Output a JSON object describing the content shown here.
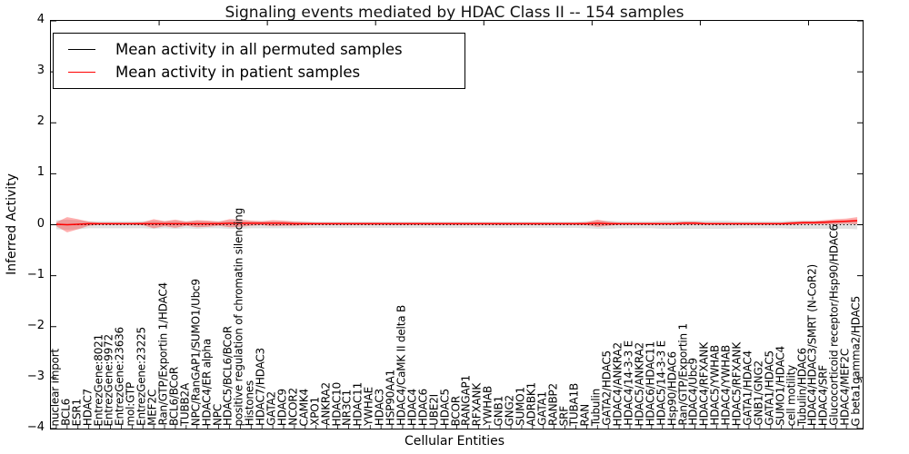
{
  "title": "Signaling events mediated by HDAC Class II -- 154 samples",
  "legend": {
    "items": [
      {
        "label": "Mean activity in all permuted samples",
        "color": "#000000"
      },
      {
        "label": "Mean activity in patient samples",
        "color": "#ff0000"
      }
    ]
  },
  "chart_data": {
    "type": "line",
    "title": "Signaling events mediated by HDAC Class II -- 154 samples",
    "xlabel": "Cellular Entities",
    "ylabel": "Inferred Activity",
    "ylim": [
      -4,
      4
    ],
    "yticks": [
      4,
      3,
      2,
      1,
      0,
      -1,
      -2,
      -3,
      -4
    ],
    "grid": false,
    "legend_position": "upper left",
    "categories": [
      "nuclear import",
      "BCL6",
      "ESR1",
      "HDAC7",
      "EntrezGene:8021",
      "EntrezGene:9972",
      "EntrezGene:23636",
      "mol:GTP",
      "EntrezGene:23225",
      "MEF2C",
      "Ran/GTP/Exportin 1/HDAC4",
      "BCL6/BCoR",
      "TUBB2A",
      "NPC/RanGAP1/SUMO1/Ubc9",
      "HDAC4/ER alpha",
      "NPC",
      "HDAC5/BCL6/BCoR",
      "positive regulation of chromatin silencing",
      "Histones",
      "HDAC7/HDAC3",
      "GATA2",
      "HDAC9",
      "NCOR2",
      "CAMK4",
      "XPO1",
      "ANKRA2",
      "HDAC10",
      "NR3C1",
      "HDAC11",
      "YWHAE",
      "HDAC3",
      "HSP90AA1",
      "HDAC4/CaMK II delta B",
      "HDAC4",
      "HDAC6",
      "UBE2I",
      "HDAC5",
      "BCOR",
      "RANGAP1",
      "RFXANK",
      "YWHAB",
      "GNB1",
      "GNG2",
      "SUMO1",
      "ADRBK1",
      "GATA1",
      "RANBP2",
      "SRF",
      "TUBA1B",
      "RAN",
      "Tubulin",
      "GATA2/HDAC5",
      "HDAC4/ANKRA2",
      "HDAC4/14-3-3 E",
      "HDAC5/ANKRA2",
      "HDAC6/HDAC11",
      "HDAC5/14-3-3 E",
      "Hsp90/HDAC6",
      "Ran/GTP/Exportin 1",
      "HDAC4/Ubc9",
      "HDAC4/RFXANK",
      "HDAC5/YWHAB",
      "HDAC4/YWHAB",
      "HDAC5/RFXANK",
      "GATA1/HDAC4",
      "GNB1/GNG2",
      "GATA1/HDAC5",
      "SUMO1/HDAC4",
      "cell motility",
      "Tubulin/HDAC6",
      "HDAC4/HDAC3/SMRT (N-CoR2)",
      "HDAC4/SRF",
      "Glucocorticoid receptor/Hsp90/HDAC6",
      "HDAC4/MEF2C",
      "G beta1gamma2/HDAC5"
    ],
    "series": [
      {
        "name": "Mean activity in all permuted samples",
        "color": "#000000",
        "line_style": "dotted",
        "band_color": "#aaaaaa",
        "band_opacity": 0.35,
        "values": [
          0,
          0,
          0,
          0,
          0,
          0,
          0,
          0,
          0,
          0,
          0,
          0,
          0,
          0,
          0,
          0,
          0,
          0,
          0,
          0,
          0,
          0,
          0,
          0,
          0,
          0,
          0,
          0,
          0,
          0,
          0,
          0,
          0,
          0,
          0,
          0,
          0,
          0,
          0,
          0,
          0,
          0,
          0,
          0,
          0,
          0,
          0,
          0,
          0,
          0,
          0,
          0,
          0,
          0,
          0,
          0,
          0,
          0,
          0,
          0,
          0,
          0,
          0,
          0,
          0,
          0,
          0,
          0,
          0,
          0,
          0,
          0,
          0,
          0,
          0
        ],
        "band_halfwidth": [
          0.09,
          0.1,
          0.09,
          0.07,
          0.07,
          0.07,
          0.07,
          0.07,
          0.07,
          0.08,
          0.07,
          0.08,
          0.07,
          0.08,
          0.07,
          0.07,
          0.08,
          0.08,
          0.07,
          0.07,
          0.07,
          0.07,
          0.07,
          0.07,
          0.06,
          0.06,
          0.06,
          0.06,
          0.06,
          0.06,
          0.06,
          0.06,
          0.06,
          0.06,
          0.06,
          0.06,
          0.06,
          0.06,
          0.06,
          0.06,
          0.06,
          0.06,
          0.06,
          0.06,
          0.06,
          0.06,
          0.06,
          0.06,
          0.06,
          0.07,
          0.08,
          0.08,
          0.07,
          0.07,
          0.07,
          0.07,
          0.08,
          0.08,
          0.08,
          0.08,
          0.08,
          0.08,
          0.08,
          0.07,
          0.07,
          0.07,
          0.07,
          0.07,
          0.08,
          0.08,
          0.08,
          0.08,
          0.08,
          0.08,
          0.09
        ]
      },
      {
        "name": "Mean activity in patient samples",
        "color": "#ff0000",
        "line_style": "solid",
        "band_color": "#ff2a2a",
        "band_opacity": 0.38,
        "values": [
          0.01,
          0.0,
          0.01,
          0.02,
          0.02,
          0.02,
          0.02,
          0.02,
          0.02,
          0.02,
          0.02,
          0.02,
          0.02,
          0.02,
          0.02,
          0.02,
          0.03,
          0.03,
          0.03,
          0.03,
          0.03,
          0.03,
          0.02,
          0.02,
          0.02,
          0.02,
          0.02,
          0.02,
          0.02,
          0.02,
          0.02,
          0.02,
          0.02,
          0.02,
          0.02,
          0.02,
          0.02,
          0.02,
          0.02,
          0.02,
          0.02,
          0.02,
          0.02,
          0.02,
          0.02,
          0.02,
          0.02,
          0.02,
          0.02,
          0.02,
          0.03,
          0.02,
          0.02,
          0.02,
          0.02,
          0.02,
          0.02,
          0.02,
          0.03,
          0.03,
          0.02,
          0.02,
          0.02,
          0.02,
          0.02,
          0.02,
          0.02,
          0.02,
          0.03,
          0.04,
          0.04,
          0.05,
          0.06,
          0.07,
          0.08
        ],
        "band_halfwidth": [
          0.04,
          0.15,
          0.1,
          0.04,
          0.02,
          0.02,
          0.02,
          0.02,
          0.03,
          0.09,
          0.05,
          0.08,
          0.04,
          0.07,
          0.06,
          0.04,
          0.08,
          0.07,
          0.05,
          0.04,
          0.06,
          0.05,
          0.04,
          0.03,
          0.02,
          0.02,
          0.02,
          0.02,
          0.02,
          0.02,
          0.02,
          0.02,
          0.02,
          0.02,
          0.02,
          0.02,
          0.02,
          0.02,
          0.02,
          0.02,
          0.02,
          0.02,
          0.02,
          0.02,
          0.02,
          0.02,
          0.02,
          0.02,
          0.02,
          0.03,
          0.07,
          0.04,
          0.02,
          0.02,
          0.02,
          0.02,
          0.02,
          0.02,
          0.03,
          0.03,
          0.02,
          0.02,
          0.02,
          0.02,
          0.02,
          0.02,
          0.02,
          0.02,
          0.03,
          0.03,
          0.03,
          0.04,
          0.05,
          0.05,
          0.07
        ]
      }
    ]
  }
}
